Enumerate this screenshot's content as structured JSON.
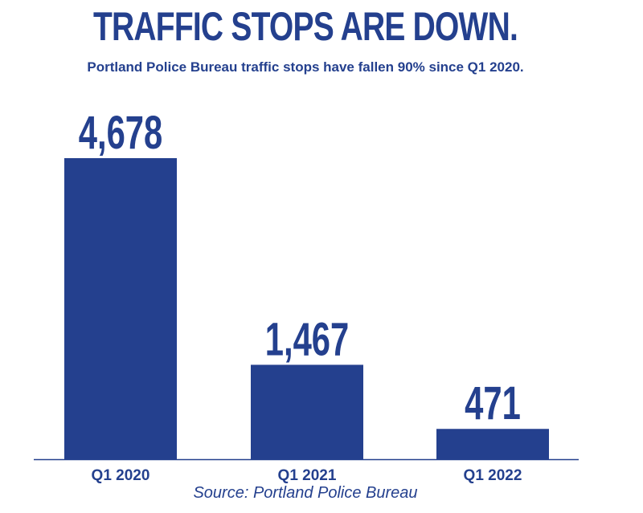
{
  "title": "TRAFFIC STOPS ARE DOWN.",
  "subtitle": "Portland Police Bureau traffic stops have fallen 90% since Q1 2020.",
  "source": "Source: Portland Police Bureau",
  "colors": {
    "bar": "#24408e",
    "text": "#24408e",
    "axis": "#24408e"
  },
  "chart_data": {
    "type": "bar",
    "title": "TRAFFIC STOPS ARE DOWN.",
    "subtitle": "Portland Police Bureau traffic stops have fallen 90% since Q1 2020.",
    "xlabel": "",
    "ylabel": "",
    "categories": [
      "Q1 2020",
      "Q1 2021",
      "Q1 2022"
    ],
    "values": [
      4678,
      1467,
      471
    ],
    "data_labels": [
      "4,678",
      "1,467",
      "471"
    ],
    "ylim": [
      0,
      4678
    ],
    "grid": false,
    "legend": "none"
  }
}
